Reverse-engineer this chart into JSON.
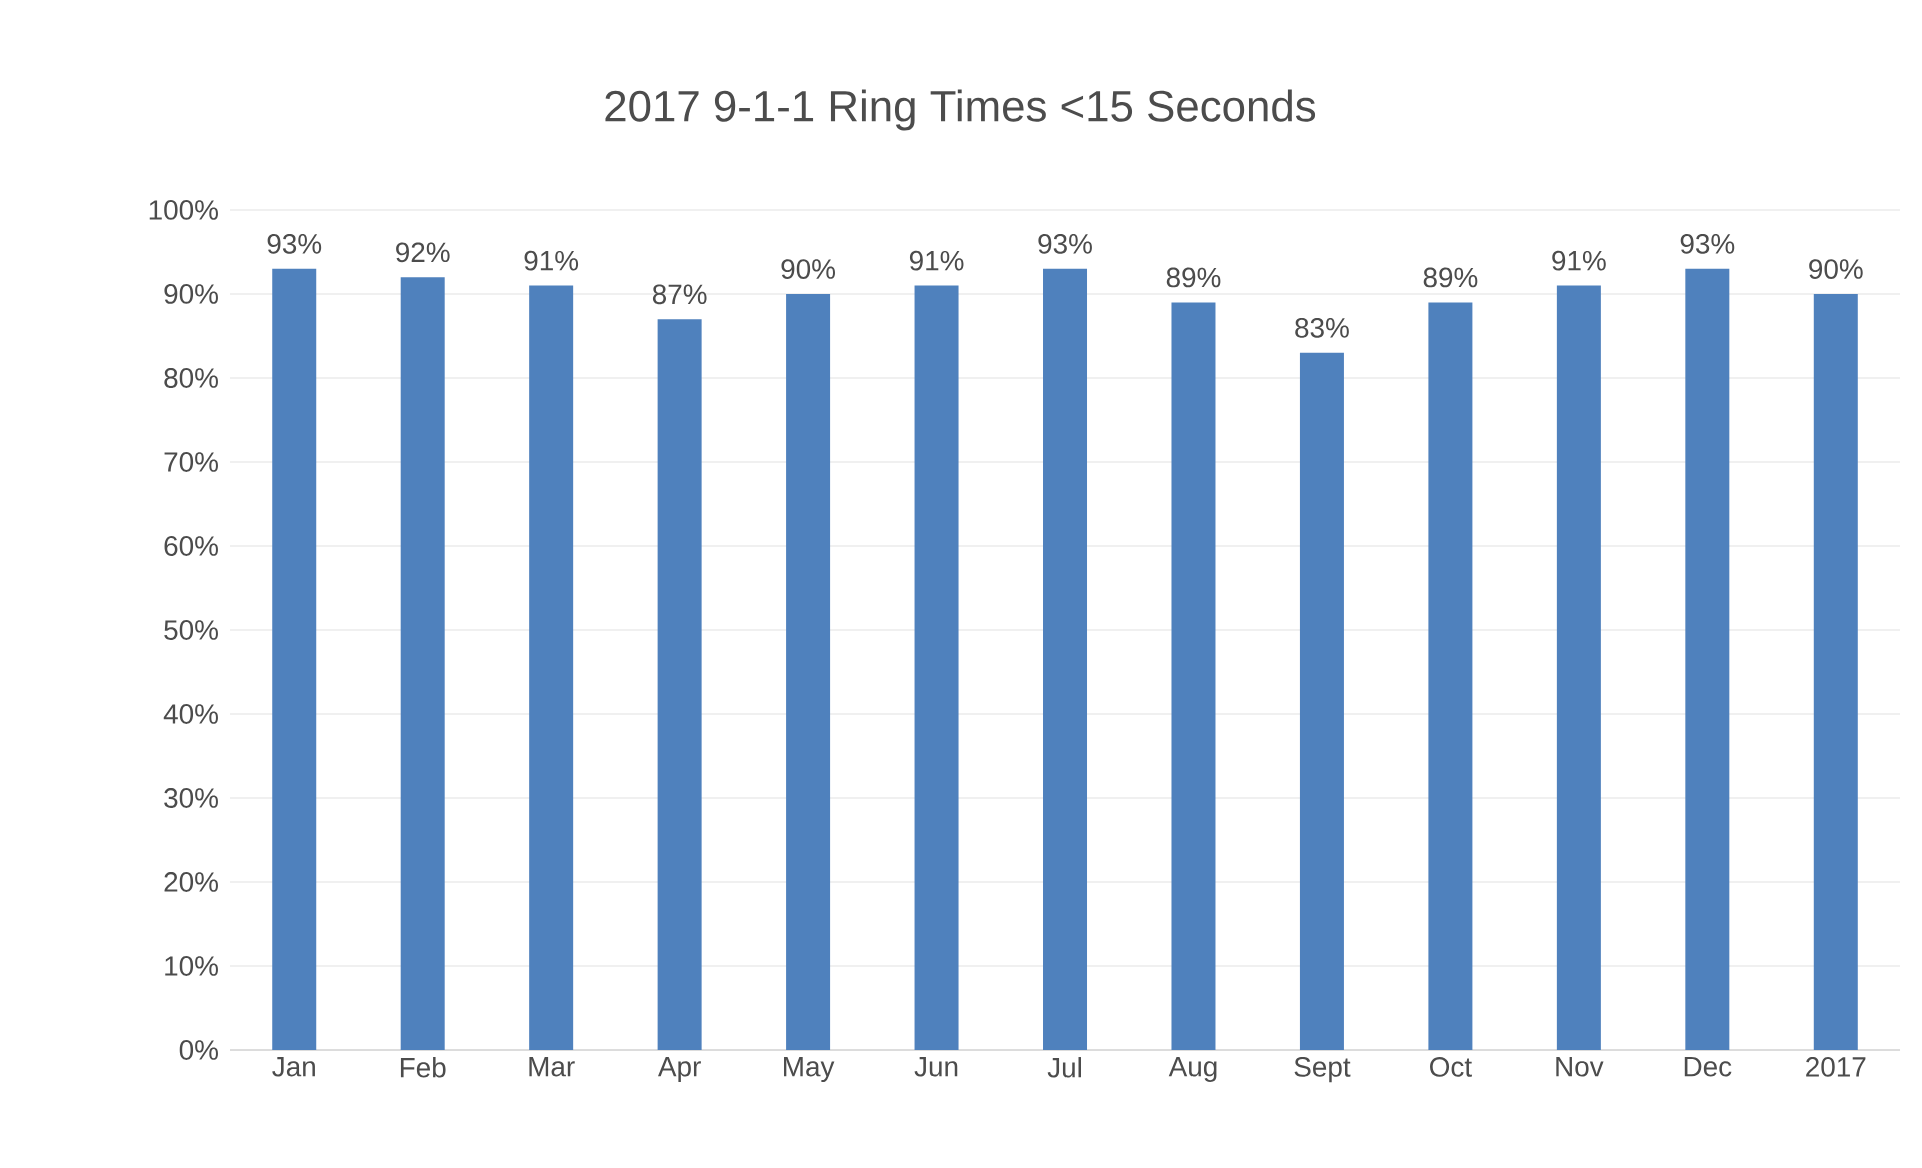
{
  "chart_data": {
    "type": "bar",
    "title": "2017 9-1-1 Ring Times <15 Seconds",
    "categories": [
      "Jan",
      "Feb",
      "Mar",
      "Apr",
      "May",
      "Jun",
      "Jul",
      "Aug",
      "Sept",
      "Oct",
      "Nov",
      "Dec",
      "2017"
    ],
    "values": [
      93,
      92,
      91,
      87,
      90,
      91,
      93,
      89,
      83,
      89,
      91,
      93,
      90
    ],
    "value_labels": [
      "93%",
      "92%",
      "91%",
      "87%",
      "90%",
      "91%",
      "93%",
      "89%",
      "83%",
      "89%",
      "91%",
      "93%",
      "90%"
    ],
    "color": "#4f81bd",
    "ylim": [
      0,
      100
    ],
    "yticks": [
      {
        "value": 0,
        "label": "0%"
      },
      {
        "value": 10,
        "label": "10%"
      },
      {
        "value": 20,
        "label": "20%"
      },
      {
        "value": 30,
        "label": "30%"
      },
      {
        "value": 40,
        "label": "40%"
      },
      {
        "value": 50,
        "label": "50%"
      },
      {
        "value": 60,
        "label": "60%"
      },
      {
        "value": 70,
        "label": "70%"
      },
      {
        "value": 80,
        "label": "80%"
      },
      {
        "value": 90,
        "label": "90%"
      },
      {
        "value": 100,
        "label": "100%"
      }
    ],
    "grid": "y"
  }
}
